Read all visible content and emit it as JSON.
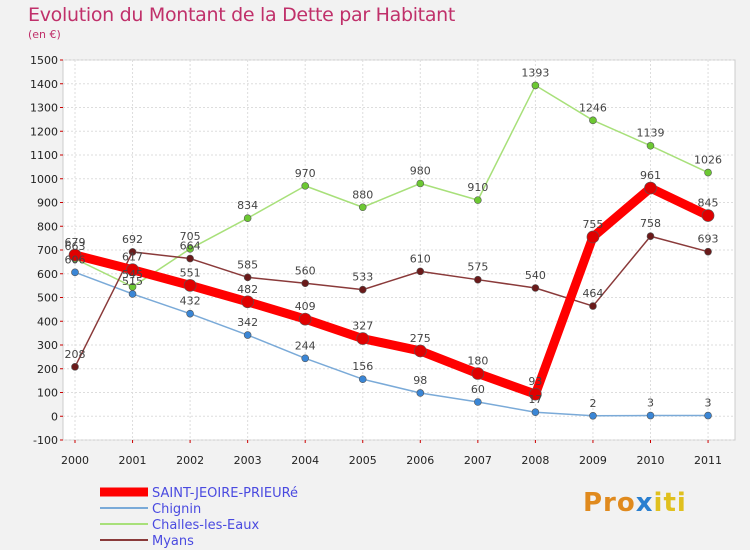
{
  "title": "Evolution du Montant de la Dette par Habitant",
  "subtitle": "(en €)",
  "logo": {
    "parts": [
      "Pro",
      "x",
      "iti"
    ],
    "colors": [
      "#e08a1e",
      "#2a7fd0",
      "#e0c01e"
    ]
  },
  "chart_data": {
    "type": "line",
    "x": [
      "2000",
      "2001",
      "2002",
      "2003",
      "2004",
      "2005",
      "2006",
      "2007",
      "2008",
      "2009",
      "2010",
      "2011"
    ],
    "ylim": [
      -100,
      1500
    ],
    "yticks": [
      -100,
      0,
      100,
      200,
      300,
      400,
      500,
      600,
      700,
      800,
      900,
      1000,
      1100,
      1200,
      1300,
      1400,
      1500
    ],
    "grid": true,
    "legend_position": "bottom-left",
    "series": [
      {
        "name": "SAINT-JEOIRE-PRIEURé",
        "color": "#ff0000",
        "marker": "#e00000",
        "width": 9,
        "r": 6,
        "values": [
          679,
          617,
          551,
          482,
          409,
          327,
          275,
          180,
          93,
          755,
          961,
          845
        ],
        "labels": [
          "679",
          "617",
          "551",
          "482",
          "409",
          "327",
          "275",
          "180",
          "93",
          "755",
          "961",
          "845"
        ]
      },
      {
        "name": "Chignin",
        "color": "#7aaad8",
        "marker": "#3a86d6",
        "width": 1.5,
        "r": 3.5,
        "values": [
          606,
          515,
          432,
          342,
          244,
          156,
          98,
          60,
          17,
          2,
          3,
          3
        ],
        "labels": [
          "606",
          "515",
          "432",
          "342",
          "244",
          "156",
          "98",
          "60",
          "17",
          "2",
          "3",
          "3"
        ]
      },
      {
        "name": "Challes-les-Eaux",
        "color": "#a8e07a",
        "marker": "#6cc832",
        "width": 1.5,
        "r": 3.5,
        "values": [
          663,
          545,
          705,
          834,
          970,
          880,
          980,
          910,
          1393,
          1246,
          1139,
          1026
        ],
        "labels": [
          "663",
          "545",
          "705",
          "834",
          "970",
          "880",
          "980",
          "910",
          "1393",
          "1246",
          "1139",
          "1026"
        ]
      },
      {
        "name": "Myans",
        "color": "#8a3a3a",
        "marker": "#6a1a1a",
        "width": 1.5,
        "r": 3.5,
        "values": [
          208,
          692,
          664,
          585,
          560,
          533,
          610,
          575,
          540,
          464,
          758,
          693
        ],
        "labels": [
          "208",
          "692",
          "664",
          "585",
          "560",
          "533",
          "610",
          "575",
          "540",
          "464",
          "758",
          "693"
        ]
      }
    ]
  }
}
